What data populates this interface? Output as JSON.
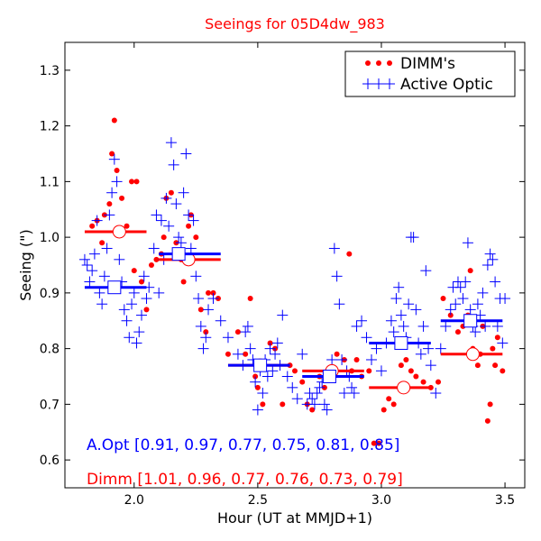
{
  "chart_data": {
    "type": "scatter",
    "title": "Seeings for 05D4dw_983",
    "xlabel": "Hour (UT at MMJD+1)",
    "ylabel": "Seeing (\")",
    "xlim": [
      1.72,
      3.58
    ],
    "ylim": [
      0.55,
      1.35
    ],
    "xticks": [
      "2.0",
      "2.5",
      "3.0",
      "3.5"
    ],
    "xtick_values": [
      2.0,
      2.5,
      3.0,
      3.5
    ],
    "yticks": [
      "0.6",
      "0.7",
      "0.8",
      "0.9",
      "1.0",
      "1.1",
      "1.2",
      "1.3"
    ],
    "ytick_values": [
      0.6,
      0.7,
      0.8,
      0.9,
      1.0,
      1.1,
      1.2,
      1.3
    ],
    "grid": false,
    "legend_position": "top-right",
    "colors": {
      "dimm": "#ff0000",
      "aopt": "#0000ff",
      "title": "#ff0000"
    },
    "annotations": {
      "aopt_summary": "A.Opt [0.91, 0.97, 0.77, 0.75, 0.81, 0.85]",
      "dimm_summary": "Dimm [1.01, 0.96, 0.77, 0.76, 0.73, 0.79]"
    },
    "series": [
      {
        "name": "DIMM's",
        "marker": "dot",
        "color": "#ff0000",
        "points": [
          [
            1.83,
            1.02
          ],
          [
            1.85,
            1.03
          ],
          [
            1.87,
            0.99
          ],
          [
            1.88,
            1.04
          ],
          [
            1.9,
            1.06
          ],
          [
            1.91,
            1.15
          ],
          [
            1.92,
            1.21
          ],
          [
            1.93,
            1.12
          ],
          [
            1.95,
            1.07
          ],
          [
            1.97,
            1.02
          ],
          [
            1.99,
            1.1
          ],
          [
            2.01,
            1.1
          ],
          [
            2.0,
            0.94
          ],
          [
            2.03,
            0.92
          ],
          [
            2.05,
            0.87
          ],
          [
            2.07,
            0.95
          ],
          [
            2.09,
            0.96
          ],
          [
            2.11,
            0.97
          ],
          [
            2.12,
            1.0
          ],
          [
            2.13,
            1.07
          ],
          [
            2.15,
            1.08
          ],
          [
            2.17,
            0.99
          ],
          [
            2.19,
            0.96
          ],
          [
            2.2,
            0.92
          ],
          [
            2.22,
            1.02
          ],
          [
            2.23,
            1.04
          ],
          [
            2.25,
            1.0
          ],
          [
            2.27,
            0.87
          ],
          [
            2.29,
            0.83
          ],
          [
            2.3,
            0.9
          ],
          [
            2.32,
            0.9
          ],
          [
            2.34,
            0.89
          ],
          [
            2.38,
            0.79
          ],
          [
            2.42,
            0.83
          ],
          [
            2.45,
            0.79
          ],
          [
            2.47,
            0.89
          ],
          [
            2.49,
            0.75
          ],
          [
            2.5,
            0.73
          ],
          [
            2.52,
            0.7
          ],
          [
            2.55,
            0.81
          ],
          [
            2.57,
            0.8
          ],
          [
            2.6,
            0.7
          ],
          [
            2.63,
            0.77
          ],
          [
            2.65,
            0.76
          ],
          [
            2.68,
            0.74
          ],
          [
            2.7,
            0.7
          ],
          [
            2.72,
            0.69
          ],
          [
            2.75,
            0.75
          ],
          [
            2.77,
            0.73
          ],
          [
            2.8,
            0.76
          ],
          [
            2.82,
            0.79
          ],
          [
            2.85,
            0.78
          ],
          [
            2.87,
            0.97
          ],
          [
            2.88,
            0.76
          ],
          [
            2.9,
            0.78
          ],
          [
            2.92,
            0.75
          ],
          [
            2.95,
            0.76
          ],
          [
            2.97,
            0.63
          ],
          [
            2.99,
            0.63
          ],
          [
            3.01,
            0.69
          ],
          [
            3.03,
            0.71
          ],
          [
            3.05,
            0.7
          ],
          [
            3.08,
            0.77
          ],
          [
            3.1,
            0.78
          ],
          [
            3.12,
            0.76
          ],
          [
            3.14,
            0.75
          ],
          [
            3.17,
            0.74
          ],
          [
            3.2,
            0.73
          ],
          [
            3.23,
            0.74
          ],
          [
            3.25,
            0.89
          ],
          [
            3.28,
            0.86
          ],
          [
            3.31,
            0.83
          ],
          [
            3.33,
            0.84
          ],
          [
            3.35,
            0.86
          ],
          [
            3.37,
            0.8
          ],
          [
            3.39,
            0.77
          ],
          [
            3.41,
            0.84
          ],
          [
            3.43,
            0.67
          ],
          [
            3.44,
            0.7
          ],
          [
            3.45,
            0.8
          ],
          [
            3.46,
            0.77
          ],
          [
            3.47,
            0.82
          ],
          [
            3.49,
            0.76
          ],
          [
            3.36,
            0.94
          ],
          [
            3.4,
            0.79
          ]
        ]
      },
      {
        "name": "Active Optic",
        "marker": "plus",
        "color": "#0000ff",
        "points": [
          [
            1.8,
            0.96
          ],
          [
            1.81,
            0.95
          ],
          [
            1.82,
            0.92
          ],
          [
            1.83,
            0.94
          ],
          [
            1.84,
            0.97
          ],
          [
            1.85,
            1.03
          ],
          [
            1.86,
            0.9
          ],
          [
            1.87,
            0.88
          ],
          [
            1.88,
            0.93
          ],
          [
            1.89,
            0.98
          ],
          [
            1.9,
            1.04
          ],
          [
            1.91,
            1.08
          ],
          [
            1.92,
            1.14
          ],
          [
            1.93,
            1.1
          ],
          [
            1.94,
            0.96
          ],
          [
            1.95,
            0.92
          ],
          [
            1.96,
            0.87
          ],
          [
            1.97,
            0.85
          ],
          [
            1.98,
            0.82
          ],
          [
            1.99,
            0.88
          ],
          [
            2.0,
            0.9
          ],
          [
            2.01,
            0.81
          ],
          [
            2.02,
            0.83
          ],
          [
            2.03,
            0.86
          ],
          [
            2.04,
            0.93
          ],
          [
            2.05,
            0.89
          ],
          [
            2.06,
            0.91
          ],
          [
            2.08,
            0.98
          ],
          [
            2.09,
            1.04
          ],
          [
            2.1,
            0.9
          ],
          [
            2.11,
            1.03
          ],
          [
            2.12,
            0.96
          ],
          [
            2.13,
            1.07
          ],
          [
            2.14,
            1.02
          ],
          [
            2.15,
            1.17
          ],
          [
            2.16,
            1.13
          ],
          [
            2.17,
            1.06
          ],
          [
            2.18,
            1.0
          ],
          [
            2.19,
            0.99
          ],
          [
            2.2,
            1.08
          ],
          [
            2.21,
            1.15
          ],
          [
            2.22,
            1.04
          ],
          [
            2.23,
            0.98
          ],
          [
            2.24,
            1.03
          ],
          [
            2.25,
            0.93
          ],
          [
            2.26,
            0.89
          ],
          [
            2.27,
            0.84
          ],
          [
            2.28,
            0.8
          ],
          [
            2.29,
            0.82
          ],
          [
            2.3,
            0.87
          ],
          [
            2.32,
            0.89
          ],
          [
            2.35,
            0.85
          ],
          [
            2.38,
            0.82
          ],
          [
            2.42,
            0.79
          ],
          [
            2.44,
            0.77
          ],
          [
            2.45,
            0.83
          ],
          [
            2.46,
            0.84
          ],
          [
            2.47,
            0.8
          ],
          [
            2.48,
            0.78
          ],
          [
            2.49,
            0.74
          ],
          [
            2.5,
            0.69
          ],
          [
            2.51,
            0.76
          ],
          [
            2.52,
            0.72
          ],
          [
            2.53,
            0.78
          ],
          [
            2.54,
            0.75
          ],
          [
            2.55,
            0.8
          ],
          [
            2.56,
            0.76
          ],
          [
            2.57,
            0.79
          ],
          [
            2.58,
            0.81
          ],
          [
            2.59,
            0.77
          ],
          [
            2.6,
            0.86
          ],
          [
            2.62,
            0.75
          ],
          [
            2.64,
            0.73
          ],
          [
            2.66,
            0.71
          ],
          [
            2.68,
            0.79
          ],
          [
            2.7,
            0.7
          ],
          [
            2.71,
            0.72
          ],
          [
            2.72,
            0.71
          ],
          [
            2.73,
            0.7
          ],
          [
            2.74,
            0.72
          ],
          [
            2.75,
            0.73
          ],
          [
            2.76,
            0.74
          ],
          [
            2.77,
            0.7
          ],
          [
            2.78,
            0.69
          ],
          [
            2.79,
            0.75
          ],
          [
            2.8,
            0.78
          ],
          [
            2.81,
            0.98
          ],
          [
            2.82,
            0.93
          ],
          [
            2.83,
            0.88
          ],
          [
            2.84,
            0.78
          ],
          [
            2.85,
            0.72
          ],
          [
            2.86,
            0.76
          ],
          [
            2.87,
            0.75
          ],
          [
            2.88,
            0.73
          ],
          [
            2.89,
            0.72
          ],
          [
            2.9,
            0.84
          ],
          [
            2.92,
            0.85
          ],
          [
            2.94,
            0.82
          ],
          [
            2.96,
            0.78
          ],
          [
            2.98,
            0.8
          ],
          [
            3.0,
            0.76
          ],
          [
            3.02,
            0.81
          ],
          [
            3.04,
            0.85
          ],
          [
            3.05,
            0.83
          ],
          [
            3.06,
            0.89
          ],
          [
            3.07,
            0.91
          ],
          [
            3.08,
            0.86
          ],
          [
            3.09,
            0.84
          ],
          [
            3.1,
            0.82
          ],
          [
            3.11,
            0.88
          ],
          [
            3.12,
            1.0
          ],
          [
            3.13,
            1.0
          ],
          [
            3.14,
            0.87
          ],
          [
            3.15,
            0.81
          ],
          [
            3.16,
            0.79
          ],
          [
            3.17,
            0.84
          ],
          [
            3.18,
            0.94
          ],
          [
            3.19,
            0.8
          ],
          [
            3.2,
            0.77
          ],
          [
            3.22,
            0.72
          ],
          [
            3.24,
            0.8
          ],
          [
            3.26,
            0.84
          ],
          [
            3.28,
            0.87
          ],
          [
            3.29,
            0.91
          ],
          [
            3.3,
            0.88
          ],
          [
            3.31,
            0.92
          ],
          [
            3.32,
            0.91
          ],
          [
            3.33,
            0.89
          ],
          [
            3.34,
            0.92
          ],
          [
            3.35,
            0.99
          ],
          [
            3.36,
            0.87
          ],
          [
            3.37,
            0.84
          ],
          [
            3.38,
            0.83
          ],
          [
            3.39,
            0.88
          ],
          [
            3.4,
            0.86
          ],
          [
            3.41,
            0.9
          ],
          [
            3.42,
            0.84
          ],
          [
            3.43,
            0.95
          ],
          [
            3.44,
            0.97
          ],
          [
            3.45,
            0.96
          ],
          [
            3.46,
            0.92
          ],
          [
            3.47,
            0.84
          ],
          [
            3.48,
            0.89
          ],
          [
            3.49,
            0.81
          ],
          [
            3.5,
            0.89
          ]
        ]
      }
    ],
    "summary_bins": {
      "dimm": [
        {
          "x0": 1.8,
          "x1": 2.05,
          "y": 1.01,
          "cx": 1.94
        },
        {
          "x0": 2.1,
          "x1": 2.35,
          "y": 0.96,
          "cx": 2.22
        },
        {
          "x0": 2.38,
          "x1": 2.63,
          "y": 0.77,
          "cx": 2.51
        },
        {
          "x0": 2.68,
          "x1": 2.93,
          "y": 0.76,
          "cx": 2.8
        },
        {
          "x0": 2.95,
          "x1": 3.2,
          "y": 0.73,
          "cx": 3.09
        },
        {
          "x0": 3.24,
          "x1": 3.49,
          "y": 0.79,
          "cx": 3.37
        }
      ],
      "aopt": [
        {
          "x0": 1.8,
          "x1": 2.05,
          "y": 0.91,
          "cx": 1.92
        },
        {
          "x0": 2.1,
          "x1": 2.35,
          "y": 0.97,
          "cx": 2.18
        },
        {
          "x0": 2.38,
          "x1": 2.63,
          "y": 0.77,
          "cx": 2.51
        },
        {
          "x0": 2.68,
          "x1": 2.93,
          "y": 0.75,
          "cx": 2.79
        },
        {
          "x0": 2.95,
          "x1": 3.2,
          "y": 0.81,
          "cx": 3.08
        },
        {
          "x0": 3.24,
          "x1": 3.49,
          "y": 0.85,
          "cx": 3.36
        }
      ]
    }
  }
}
